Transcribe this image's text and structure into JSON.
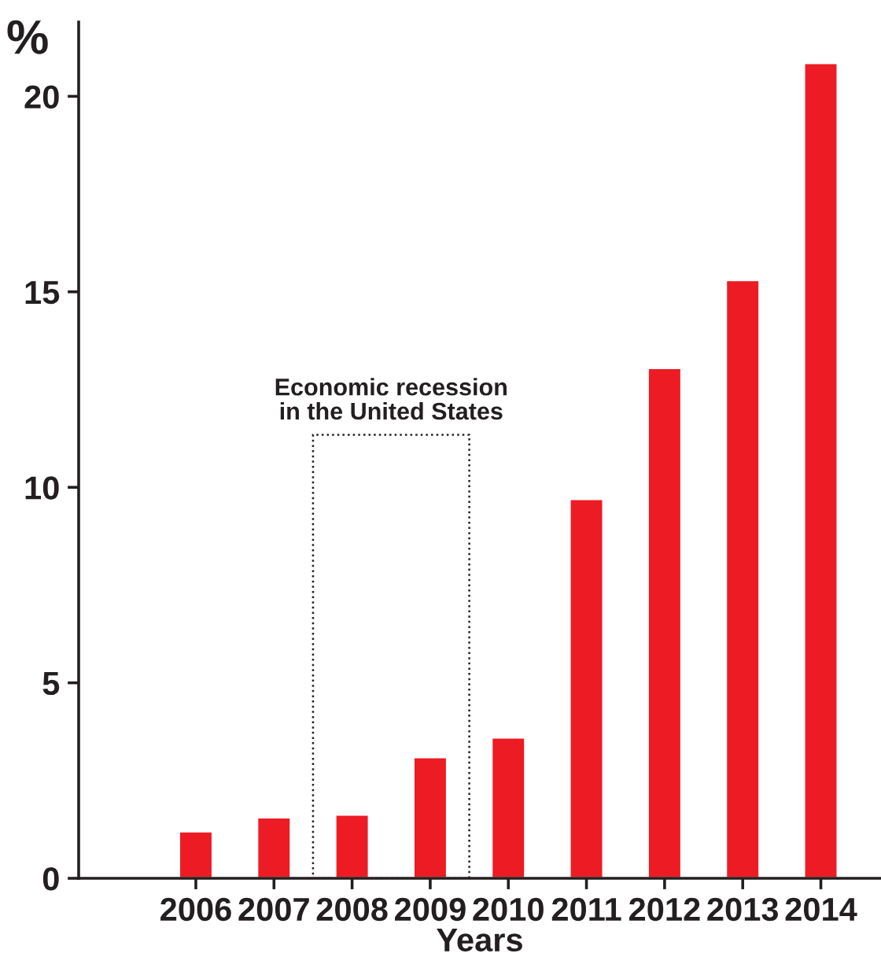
{
  "chart_data": {
    "type": "bar",
    "xlabel": "Years",
    "ylabel": "%",
    "categories": [
      "2006",
      "2007",
      "2008",
      "2009",
      "2010",
      "2011",
      "2012",
      "2013",
      "2014"
    ],
    "values": [
      1.2,
      1.56,
      1.63,
      3.1,
      3.6,
      9.7,
      13.05,
      15.3,
      20.85
    ],
    "color": "#ed1c24",
    "ylim": [
      0,
      21.9
    ],
    "yticks": [
      0,
      5,
      10,
      15,
      20
    ],
    "annotations": [
      "Economic recession\nin the United States"
    ],
    "grid": false,
    "legend": false
  }
}
